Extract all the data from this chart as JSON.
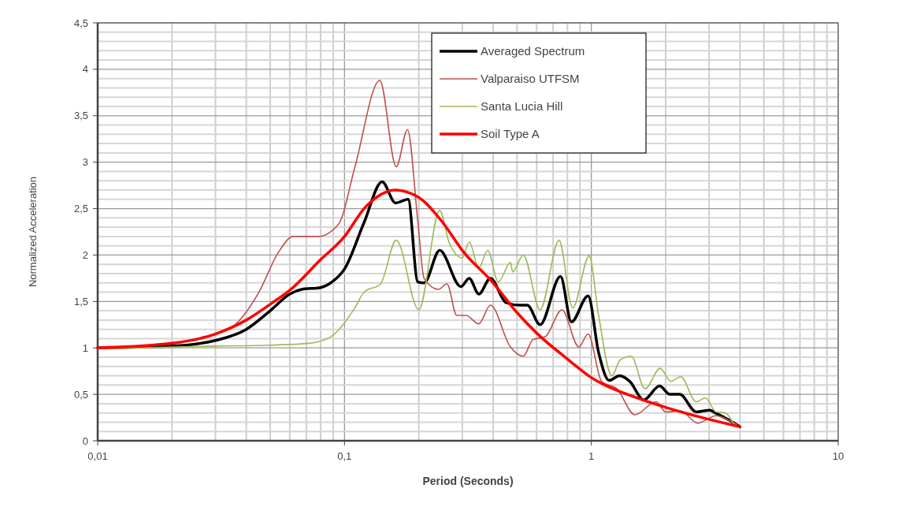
{
  "chart_data": {
    "type": "line",
    "xlabel": "Period (Seconds)",
    "ylabel": "Normalized Acceleration",
    "log": "x",
    "grid": true,
    "legend": "top right",
    "line_style": "solid",
    "marker": "none",
    "xlim": [
      0.01,
      10
    ],
    "xticks": [
      {
        "value": 0.01,
        "label": "0,01"
      },
      {
        "value": 0.02,
        "label": null
      },
      {
        "value": 0.03,
        "label": null
      },
      {
        "value": 0.04,
        "label": null
      },
      {
        "value": 0.05,
        "label": null
      },
      {
        "value": 0.06,
        "label": null
      },
      {
        "value": 0.07,
        "label": null
      },
      {
        "value": 0.08,
        "label": null
      },
      {
        "value": 0.09,
        "label": null
      },
      {
        "value": 0.1,
        "label": "0,1"
      },
      {
        "value": 0.2,
        "label": null
      },
      {
        "value": 0.3,
        "label": null
      },
      {
        "value": 0.4,
        "label": null
      },
      {
        "value": 0.5,
        "label": null
      },
      {
        "value": 0.6,
        "label": null
      },
      {
        "value": 0.7,
        "label": null
      },
      {
        "value": 0.8,
        "label": null
      },
      {
        "value": 0.9,
        "label": null
      },
      1,
      {
        "value": 2,
        "label": null
      },
      {
        "value": 3,
        "label": null
      },
      {
        "value": 4,
        "label": null
      },
      {
        "value": 5,
        "label": null
      },
      {
        "value": 6,
        "label": null
      },
      {
        "value": 7,
        "label": null
      },
      {
        "value": 8,
        "label": null
      },
      {
        "value": 9,
        "label": null
      },
      10
    ],
    "ylim": [
      0,
      4.5
    ],
    "yticks": [
      0,
      {
        "value": 0.1,
        "label": null
      },
      {
        "value": 0.2,
        "label": null
      },
      {
        "value": 0.3,
        "label": null
      },
      {
        "value": 0.4,
        "label": null
      },
      {
        "value": 0.5,
        "label": "0,5"
      },
      {
        "value": 0.6,
        "label": null
      },
      {
        "value": 0.7,
        "label": null
      },
      {
        "value": 0.8,
        "label": null
      },
      {
        "value": 0.9,
        "label": null
      },
      1,
      {
        "value": 1.1,
        "label": null
      },
      {
        "value": 1.2,
        "label": null
      },
      {
        "value": 1.3,
        "label": null
      },
      {
        "value": 1.4,
        "label": null
      },
      {
        "value": 1.5,
        "label": "1,5"
      },
      {
        "value": 1.6,
        "label": null
      },
      {
        "value": 1.7,
        "label": null
      },
      {
        "value": 1.8,
        "label": null
      },
      {
        "value": 1.9,
        "label": null
      },
      2,
      {
        "value": 2.1,
        "label": null
      },
      {
        "value": 2.2,
        "label": null
      },
      {
        "value": 2.3,
        "label": null
      },
      {
        "value": 2.4,
        "label": null
      },
      {
        "value": 2.5,
        "label": "2,5"
      },
      {
        "value": 2.6,
        "label": null
      },
      {
        "value": 2.7,
        "label": null
      },
      {
        "value": 2.8,
        "label": null
      },
      {
        "value": 2.9,
        "label": null
      },
      3,
      {
        "value": 3.1,
        "label": null
      },
      {
        "value": 3.2,
        "label": null
      },
      {
        "value": 3.3,
        "label": null
      },
      {
        "value": 3.4,
        "label": null
      },
      {
        "value": 3.5,
        "label": "3,5"
      },
      {
        "value": 3.6,
        "label": null
      },
      {
        "value": 3.7,
        "label": null
      },
      {
        "value": 3.8,
        "label": null
      },
      {
        "value": 3.9,
        "label": null
      },
      4,
      {
        "value": 4.1,
        "label": null
      },
      {
        "value": 4.2,
        "label": null
      },
      {
        "value": 4.3,
        "label": null
      },
      {
        "value": 4.4,
        "label": null
      },
      {
        "value": 4.5,
        "label": "4,5"
      }
    ],
    "series": [
      {
        "name": "Averaged Spectrum",
        "color": "#000000",
        "x": [
          0.01,
          0.02,
          0.03,
          0.04,
          0.05,
          0.06,
          0.067,
          0.08,
          0.09,
          0.1,
          0.12,
          0.142,
          0.161,
          0.181,
          0.198,
          0.21,
          0.243,
          0.296,
          0.32,
          0.35,
          0.39,
          0.45,
          0.51,
          0.55,
          0.62,
          0.75,
          0.83,
          0.97,
          1.07,
          1.18,
          1.3,
          1.43,
          1.63,
          1.89,
          2.08,
          2.28,
          2.66,
          3.02,
          3.18,
          3.74,
          4
        ],
        "values": [
          1,
          1.02,
          1.08,
          1.2,
          1.4,
          1.58,
          1.63,
          1.65,
          1.72,
          1.85,
          2.35,
          2.79,
          2.56,
          2.6,
          1.71,
          1.7,
          2.05,
          1.66,
          1.75,
          1.58,
          1.75,
          1.49,
          1.46,
          1.46,
          1.25,
          1.77,
          1.28,
          1.56,
          0.95,
          0.65,
          0.7,
          0.64,
          0.44,
          0.59,
          0.5,
          0.5,
          0.31,
          0.33,
          0.3,
          0.2,
          0.15
        ]
      },
      {
        "name": "Valparaiso UTFSM",
        "color": "#c0504d",
        "x": [
          0.01,
          0.02,
          0.03,
          0.036,
          0.045,
          0.054,
          0.062,
          0.078,
          0.095,
          0.11,
          0.139,
          0.162,
          0.18,
          0.198,
          0.21,
          0.24,
          0.26,
          0.285,
          0.31,
          0.35,
          0.39,
          0.47,
          0.53,
          0.58,
          0.65,
          0.76,
          0.89,
          0.97,
          1.1,
          1.27,
          1.5,
          1.83,
          2,
          2.3,
          2.7,
          3.2,
          3.6,
          4
        ],
        "values": [
          1,
          1.05,
          1.15,
          1.25,
          1.6,
          2.03,
          2.2,
          2.2,
          2.34,
          2.94,
          3.88,
          2.95,
          3.35,
          2.37,
          1.75,
          1.63,
          1.69,
          1.35,
          1.35,
          1.26,
          1.46,
          1.01,
          0.91,
          1.09,
          1.12,
          1.41,
          1.01,
          1.15,
          0.64,
          0.56,
          0.28,
          0.42,
          0.31,
          0.32,
          0.19,
          0.27,
          0.22,
          0.15
        ]
      },
      {
        "name": "Santa Lucia Hill",
        "color": "#9bbb59",
        "x": [
          0.01,
          0.03,
          0.05,
          0.072,
          0.088,
          0.11,
          0.12,
          0.14,
          0.162,
          0.2,
          0.243,
          0.265,
          0.3,
          0.32,
          0.35,
          0.38,
          0.42,
          0.47,
          0.48,
          0.53,
          0.62,
          0.74,
          0.84,
          0.98,
          1.07,
          1.21,
          1.31,
          1.45,
          1.65,
          1.9,
          2.1,
          2.3,
          2.66,
          2.9,
          3.2,
          3.5,
          3.8,
          4
        ],
        "values": [
          0.99,
          1.02,
          1.03,
          1.05,
          1.12,
          1.43,
          1.6,
          1.69,
          2.16,
          1.41,
          2.48,
          2.14,
          1.97,
          2.14,
          1.86,
          2.05,
          1.71,
          1.92,
          1.82,
          2,
          1.41,
          2.16,
          1.43,
          1.99,
          1.35,
          0.7,
          0.87,
          0.91,
          0.56,
          0.78,
          0.64,
          0.69,
          0.42,
          0.46,
          0.31,
          0.3,
          0.18,
          0.15
        ]
      },
      {
        "name": "Soil Type A",
        "color": "#ff0000",
        "x": [
          0.01,
          0.02,
          0.03,
          0.04,
          0.05,
          0.06,
          0.08,
          0.1,
          0.12,
          0.14,
          0.16,
          0.2,
          0.25,
          0.3,
          0.4,
          0.5,
          0.6,
          0.8,
          1,
          1.5,
          2,
          3,
          4
        ],
        "values": [
          1,
          1.05,
          1.15,
          1.3,
          1.47,
          1.62,
          1.95,
          2.2,
          2.5,
          2.65,
          2.7,
          2.62,
          2.35,
          2.05,
          1.7,
          1.38,
          1.16,
          0.88,
          0.68,
          0.47,
          0.36,
          0.23,
          0.15
        ]
      }
    ]
  }
}
